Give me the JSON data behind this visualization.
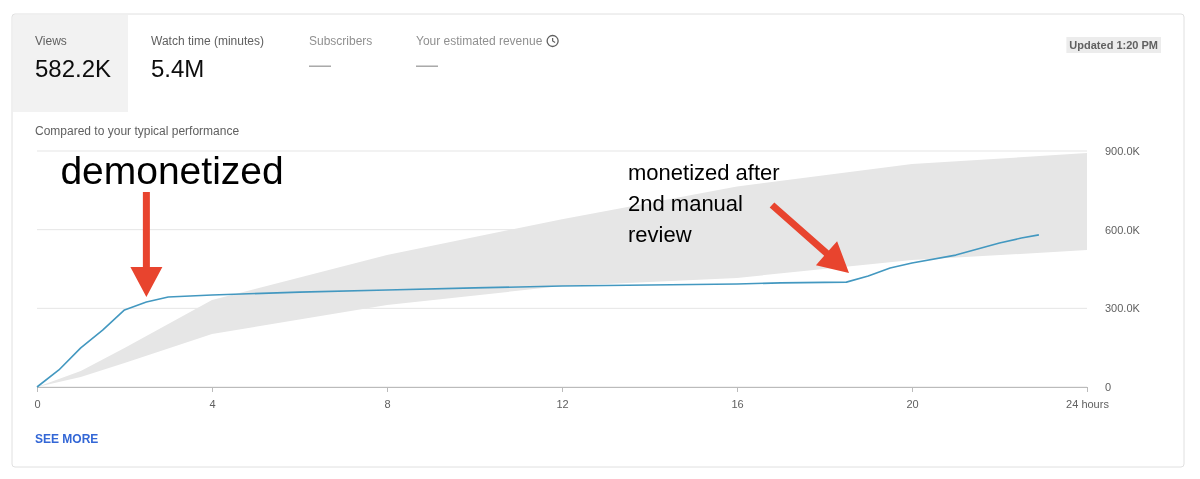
{
  "chart_data": {
    "type": "line",
    "subtitle": "Compared to your typical performance",
    "xlim": [
      0,
      24
    ],
    "xticks": [
      0,
      4,
      8,
      12,
      16,
      20,
      {
        "value": 24,
        "label": "24 hours"
      }
    ],
    "ylim": [
      0,
      900000
    ],
    "yticks": [
      0,
      {
        "value": 300000,
        "label": "300.0K"
      },
      {
        "value": 600000,
        "label": "600.0K"
      },
      {
        "value": 900000,
        "label": "900.0K"
      }
    ],
    "grid": "y",
    "marker": "none",
    "line_style": "solid",
    "series": [
      {
        "type": "area",
        "color": "#e6e6e6",
        "x": [
          0,
          1,
          2,
          4,
          8,
          12,
          16,
          20,
          24
        ],
        "values": [
          null,
          null,
          null,
          null,
          null,
          null,
          null,
          null,
          null
        ],
        "lower": [
          0,
          38000,
          92000,
          202000,
          313000,
          385000,
          416000,
          484000,
          522000
        ],
        "upper": [
          0,
          61000,
          149000,
          332000,
          503000,
          640000,
          765000,
          850000,
          892000
        ]
      },
      {
        "color": "#4398c0",
        "x": [
          0,
          0.5,
          1,
          1.5,
          2,
          2.5,
          3,
          4,
          6,
          8,
          10,
          12,
          14,
          16,
          17,
          18.5,
          19,
          19.5,
          20,
          21,
          22,
          22.5,
          22.9
        ],
        "values": [
          0,
          65000,
          149000,
          217000,
          294000,
          324000,
          343000,
          351000,
          362000,
          370000,
          378000,
          385000,
          389000,
          393000,
          397000,
          400000,
          423000,
          454000,
          473000,
          503000,
          549000,
          568000,
          580000
        ]
      }
    ],
    "annotations": [
      "Views",
      "582.2K",
      "Watch time (minutes)",
      "5.4M",
      "Subscribers",
      "—",
      "Your estimated revenue",
      "—",
      "Updated 1:20 PM",
      "SEE MORE",
      "monetized after 2nd manual review",
      {
        "text": "demonetized",
        "x": 2.5,
        "y": 324000
      }
    ]
  }
}
